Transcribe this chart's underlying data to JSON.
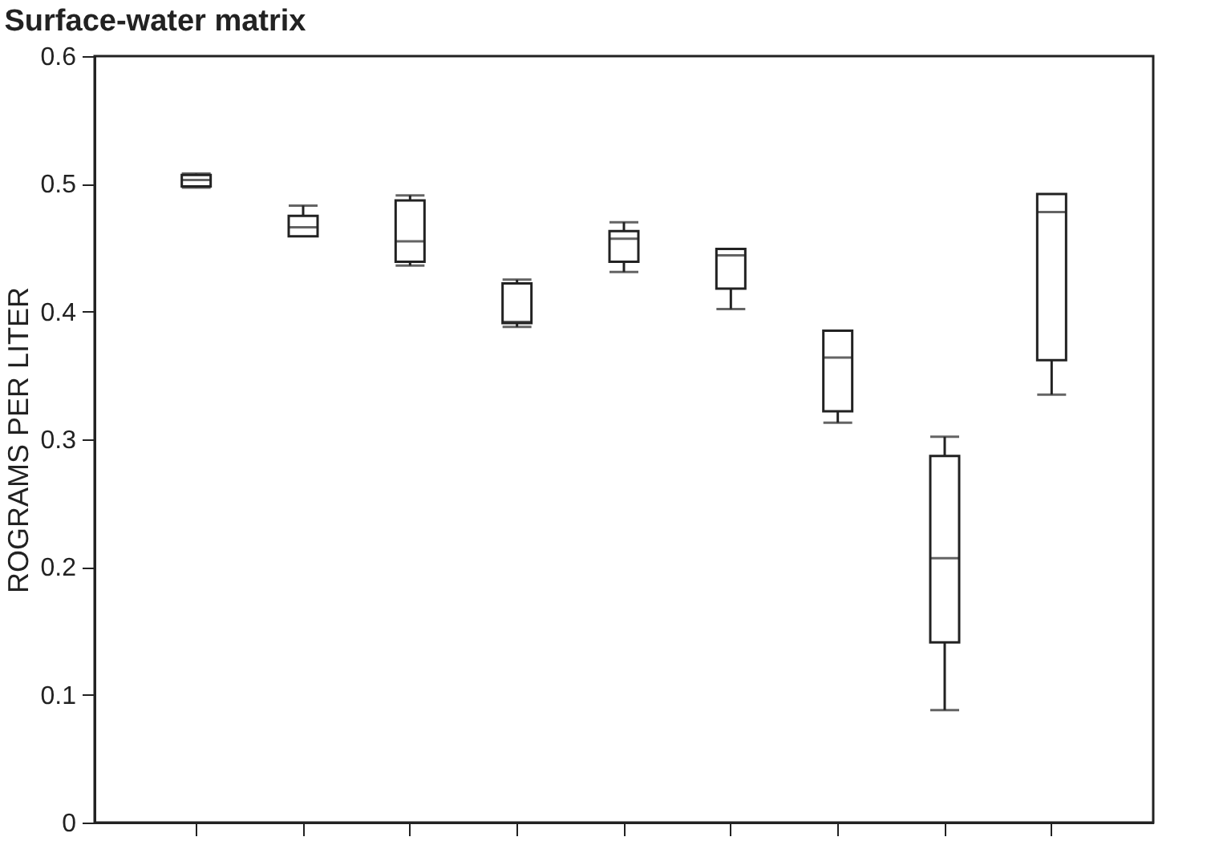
{
  "chart_data": {
    "type": "box",
    "title": "Surface-water matrix",
    "ylabel": "ROGRAMS PER LITER",
    "categories": [
      null,
      null,
      null,
      null,
      null,
      null,
      null,
      null,
      null
    ],
    "boxes": [
      {
        "low": 0.497,
        "q1": 0.498,
        "median": 0.503,
        "q3": 0.507,
        "high": 0.508
      },
      {
        "low": 0.459,
        "q1": 0.459,
        "median": 0.466,
        "q3": 0.475,
        "high": 0.483
      },
      {
        "low": 0.436,
        "q1": 0.439,
        "median": 0.455,
        "q3": 0.487,
        "high": 0.491
      },
      {
        "low": 0.388,
        "q1": 0.391,
        "median": 0.392,
        "q3": 0.422,
        "high": 0.425
      },
      {
        "low": 0.431,
        "q1": 0.439,
        "median": 0.457,
        "q3": 0.463,
        "high": 0.47
      },
      {
        "low": 0.402,
        "q1": 0.418,
        "median": 0.444,
        "q3": 0.449,
        "high": 0.449
      },
      {
        "low": 0.313,
        "q1": 0.322,
        "median": 0.364,
        "q3": 0.385,
        "high": 0.385
      },
      {
        "low": 0.088,
        "q1": 0.141,
        "median": 0.207,
        "q3": 0.287,
        "high": 0.302
      },
      {
        "low": 0.335,
        "q1": 0.362,
        "median": 0.478,
        "q3": 0.492,
        "high": 0.492
      }
    ],
    "color": "#222222",
    "ylim": [
      0,
      0.6
    ],
    "yticks": [
      0,
      0.1,
      0.2,
      0.3,
      0.4,
      0.5,
      0.6
    ],
    "tick_labels": "y",
    "grid": false
  }
}
